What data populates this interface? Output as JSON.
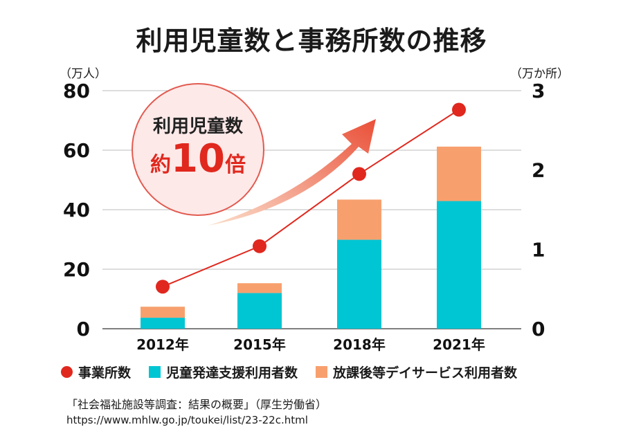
{
  "title": "利用児童数と事務所数の推移",
  "left_unit": "（万人）",
  "right_unit": "（万か所）",
  "bubble": {
    "line1": "利用児童数",
    "prefix": "約",
    "number": "10",
    "suffix": "倍"
  },
  "colors": {
    "line": "#e0281e",
    "bar_dev": "#00c5d3",
    "bar_after": "#f7a06e",
    "arrow": "#ea4f38"
  },
  "chart_data": {
    "type": "bar",
    "categories": [
      "2012年",
      "2015年",
      "2018年",
      "2021年"
    ],
    "y_left": {
      "ticks": [
        "0",
        "20",
        "40",
        "60",
        "80"
      ],
      "range": [
        0,
        80
      ]
    },
    "y_right": {
      "ticks": [
        "0",
        "1",
        "2",
        "3"
      ],
      "range": [
        0,
        3
      ]
    },
    "series": [
      {
        "name": "児童発達支援利用者数",
        "type": "stacked-bar",
        "axis": "left",
        "values": [
          3.7,
          12.0,
          29.9,
          42.9
        ]
      },
      {
        "name": "放課後等デイサービス利用者数",
        "type": "stacked-bar",
        "axis": "left",
        "values": [
          3.7,
          3.3,
          13.5,
          18.3
        ]
      },
      {
        "name": "事業所数",
        "type": "line",
        "axis": "right",
        "values": [
          0.53,
          1.04,
          1.95,
          2.76
        ]
      }
    ]
  },
  "legend": [
    "事業所数",
    "児童発達支援利用者数",
    "放課後等デイサービス利用者数"
  ],
  "source": "「社会福祉施設等調査：結果の概要」（厚生労働省）",
  "url": "https://www.mhlw.go.jp/toukei/list/23-22c.html"
}
